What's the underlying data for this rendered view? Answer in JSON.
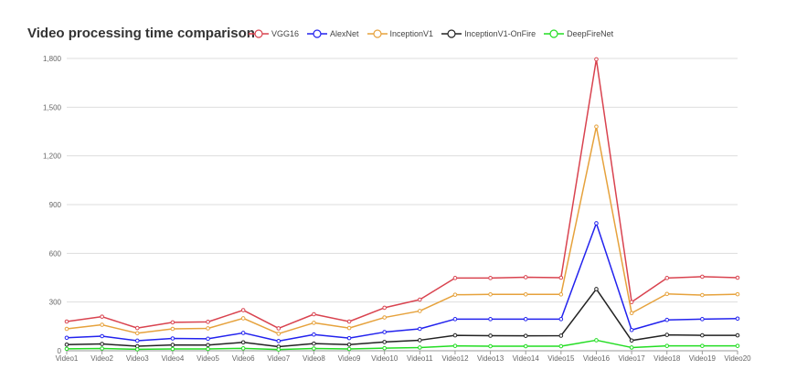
{
  "chart_data": {
    "type": "line",
    "title": "Video processing time comparison",
    "xlabel": "",
    "ylabel": "",
    "ylim": [
      0,
      1800
    ],
    "yticks": [
      0,
      300,
      600,
      900,
      1200,
      1500,
      1800
    ],
    "ytick_labels": [
      "0",
      "300",
      "600",
      "900",
      "1,200",
      "1,500",
      "1,800"
    ],
    "grid": "horizontal",
    "legend_position": "top",
    "categories": [
      "Video1",
      "Video2",
      "Video3",
      "Video4",
      "Video5",
      "Video6",
      "Video7",
      "Video8",
      "Video9",
      "Video10",
      "Video11",
      "Video12",
      "Video13",
      "Video14",
      "Video15",
      "Video16",
      "Video17",
      "Video18",
      "Video19",
      "Video20"
    ],
    "series": [
      {
        "name": "VGG16",
        "color": "#d9434f",
        "values": [
          180,
          210,
          140,
          175,
          178,
          250,
          138,
          225,
          180,
          265,
          315,
          448,
          448,
          453,
          450,
          1795,
          300,
          448,
          456,
          450
        ]
      },
      {
        "name": "AlexNet",
        "color": "#2222ee",
        "values": [
          80,
          90,
          62,
          76,
          74,
          110,
          60,
          100,
          78,
          115,
          135,
          195,
          195,
          195,
          195,
          785,
          128,
          190,
          195,
          198
        ]
      },
      {
        "name": "InceptionV1",
        "color": "#e6a23c",
        "values": [
          135,
          160,
          108,
          135,
          138,
          200,
          105,
          172,
          140,
          205,
          245,
          345,
          347,
          347,
          347,
          1380,
          232,
          350,
          343,
          348
        ]
      },
      {
        "name": "InceptionV1-OnFire",
        "color": "#222222",
        "values": [
          38,
          42,
          28,
          36,
          35,
          52,
          25,
          44,
          38,
          54,
          65,
          95,
          93,
          92,
          93,
          380,
          63,
          98,
          95,
          95
        ]
      },
      {
        "name": "DeepFireNet",
        "color": "#22dd22",
        "values": [
          12,
          14,
          9,
          11,
          11,
          15,
          8,
          14,
          11,
          16,
          20,
          30,
          28,
          28,
          28,
          65,
          20,
          30,
          30,
          30
        ]
      }
    ]
  }
}
